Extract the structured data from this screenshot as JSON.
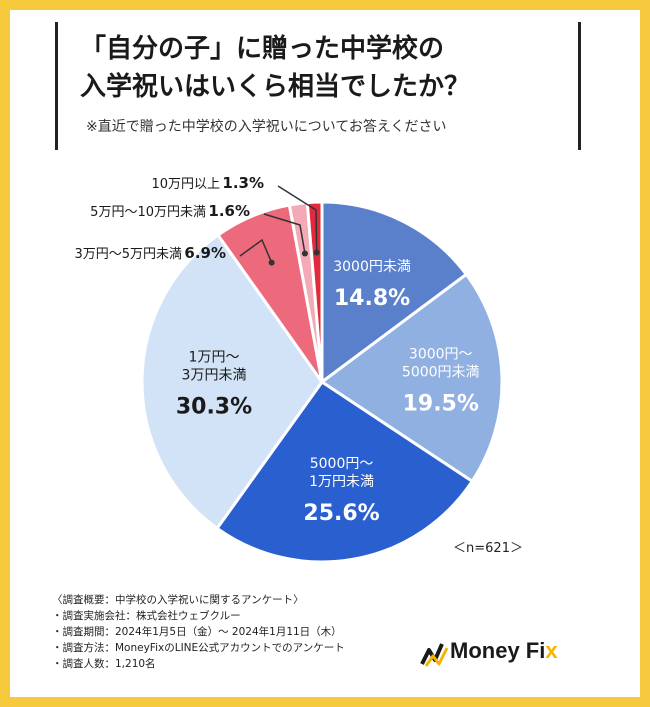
{
  "title_line1": "「自分の子」に贈った中学校の",
  "title_line2": "入学祝いはいくら相当でしたか？",
  "subtitle": "※直近で贈った中学校の入学祝いについてお答えください",
  "sample_size": "＜n=621＞",
  "notes": [
    "〈調査概要：中学校の入学祝いに関するアンケート〉",
    "・調査実施会社：株式会社ウェブクルー",
    "・調査期間：2024年1月5日（金）～ 2024年1月11日（木）",
    "・調査方法：MoneyFixのLINE公式アカウントでのアンケート",
    "・調査人数：1,210名"
  ],
  "logo": {
    "text_main": "Money Fi",
    "text_accent": "x",
    "icon": "money-fix-logo-icon"
  },
  "chart_data": {
    "type": "pie",
    "start": "12 o'clock",
    "direction": "clockwise",
    "slices": [
      {
        "label_lines": [
          "3000円未満"
        ],
        "value": 14.8,
        "display": "14.8%",
        "color": "#5a7fcb",
        "label_inside": true,
        "text_color": "#ffffff"
      },
      {
        "label_lines": [
          "3000円～",
          "5000円未満"
        ],
        "value": 19.5,
        "display": "19.5%",
        "color": "#8fb0e0",
        "label_inside": true,
        "text_color": "#ffffff"
      },
      {
        "label_lines": [
          "5000円～",
          "1万円未満"
        ],
        "value": 25.6,
        "display": "25.6%",
        "color": "#2a5fd0",
        "label_inside": true,
        "text_color": "#ffffff"
      },
      {
        "label_lines": [
          "1万円～",
          "3万円未満"
        ],
        "value": 30.3,
        "display": "30.3%",
        "color": "#d3e3f7",
        "label_inside": true,
        "text_color": "#1a1a1a"
      },
      {
        "label_lines": [
          "3万円～5万円未満"
        ],
        "value": 6.9,
        "display": "6.9%",
        "color": "#ec6a7b",
        "label_inside": false,
        "text_color": "#1a1a1a"
      },
      {
        "label_lines": [
          "5万円～10万円未満"
        ],
        "value": 1.6,
        "display": "1.6%",
        "color": "#f3aab6",
        "label_inside": false,
        "text_color": "#1a1a1a"
      },
      {
        "label_lines": [
          "10万円以上"
        ],
        "value": 1.3,
        "display": "1.3%",
        "color": "#e02a3e",
        "label_inside": false,
        "text_color": "#1a1a1a"
      }
    ]
  }
}
